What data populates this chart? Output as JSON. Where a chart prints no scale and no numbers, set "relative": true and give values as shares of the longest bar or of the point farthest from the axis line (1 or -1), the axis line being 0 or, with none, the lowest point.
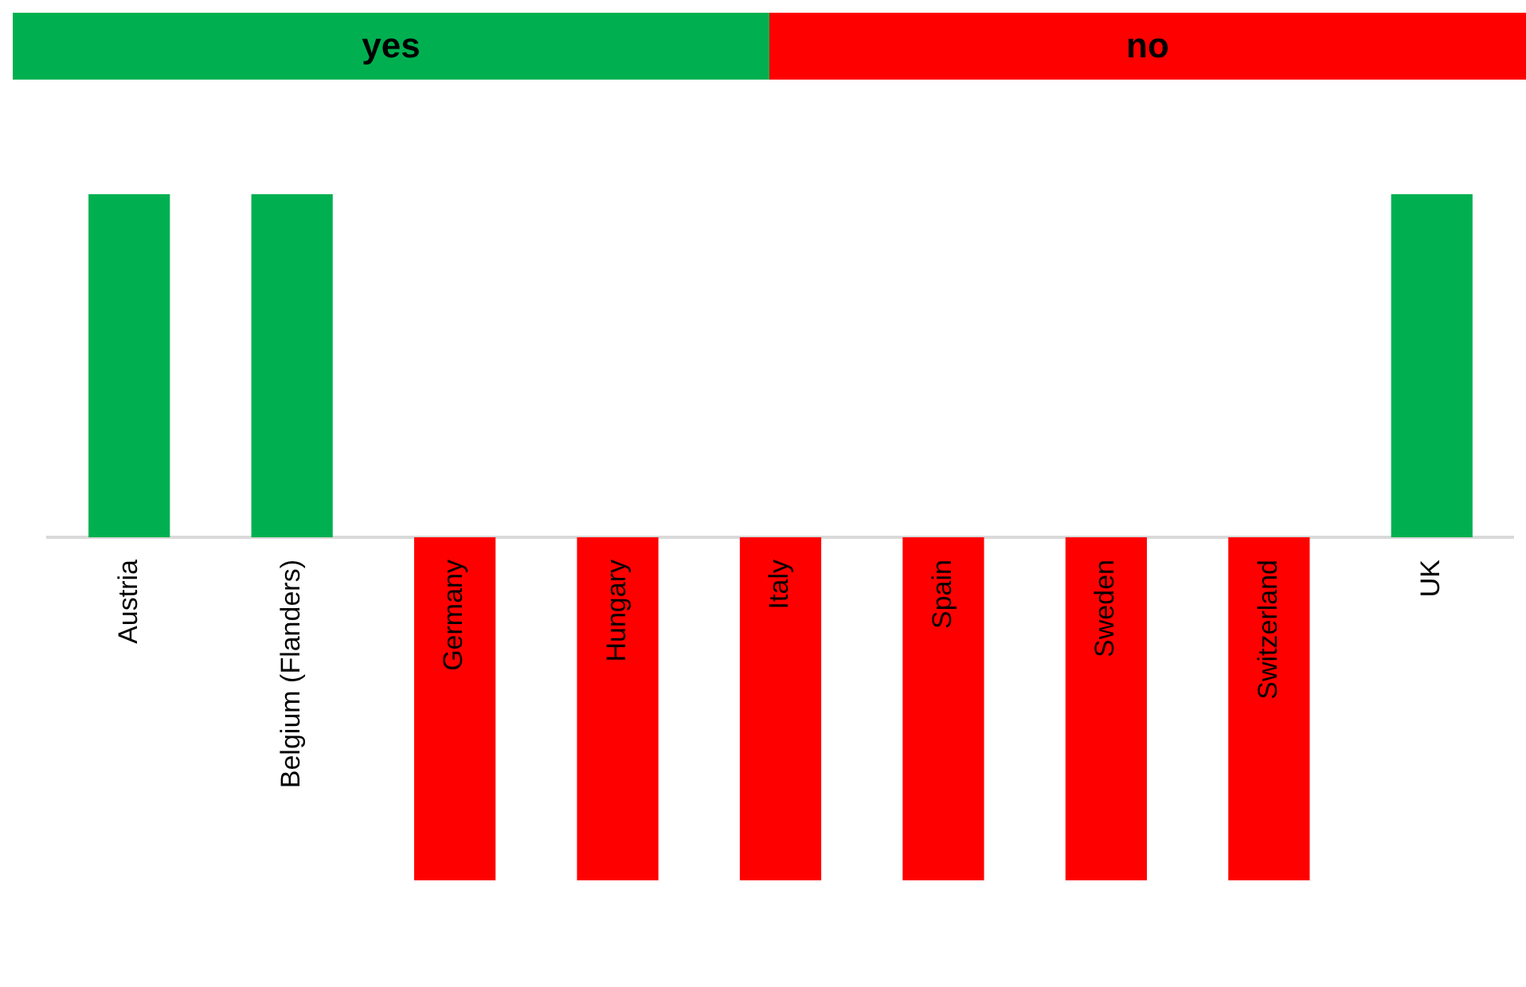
{
  "chart_data": {
    "type": "bar",
    "relative": true,
    "legend": "top",
    "categories": [
      "Austria",
      "Belgium (Flanders)",
      "Germany",
      "Hungary",
      "Italy",
      "Spain",
      "Sweden",
      "Switzerland",
      "UK"
    ],
    "series": [
      {
        "name": "yes",
        "color": "#00b050",
        "values": [
          1,
          1,
          null,
          null,
          null,
          null,
          null,
          null,
          1
        ]
      },
      {
        "name": "no",
        "color": "#ff0000",
        "values": [
          null,
          null,
          -1,
          -1,
          -1,
          -1,
          -1,
          -1,
          null
        ]
      }
    ]
  }
}
